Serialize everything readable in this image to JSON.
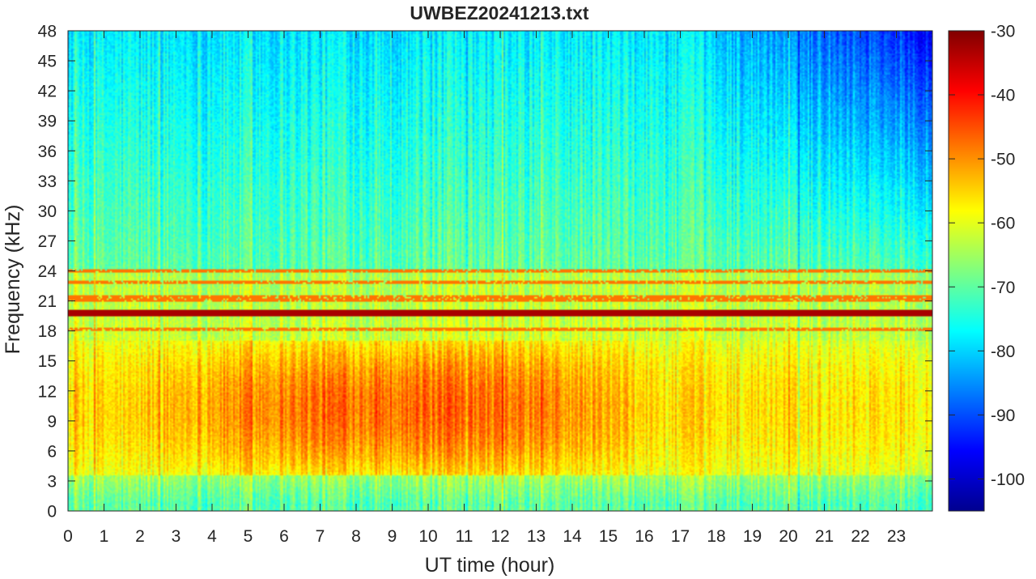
{
  "chart_data": {
    "type": "heatmap",
    "title": "UWBEZ20241213.txt",
    "xlabel": "UT time (hour)",
    "ylabel": "Frequency (kHz)",
    "xlim": [
      0,
      24
    ],
    "ylim": [
      0,
      48
    ],
    "x_ticks": [
      "0",
      "1",
      "2",
      "3",
      "4",
      "5",
      "6",
      "7",
      "8",
      "9",
      "10",
      "11",
      "12",
      "13",
      "14",
      "15",
      "16",
      "17",
      "18",
      "19",
      "20",
      "21",
      "22",
      "23"
    ],
    "y_ticks": [
      "0",
      "3",
      "6",
      "9",
      "12",
      "15",
      "18",
      "21",
      "24",
      "27",
      "30",
      "33",
      "36",
      "39",
      "42",
      "45",
      "48"
    ],
    "colorbar": {
      "colormap": "jet",
      "clim": [
        -105,
        -30
      ],
      "ticks": [
        "-100",
        "-90",
        "-80",
        "-70",
        "-60",
        "-50",
        "-40",
        "-30"
      ]
    },
    "features": {
      "strong_line_khz": 19.8,
      "secondary_lines_khz": [
        18.2,
        21.1,
        21.4,
        22.9,
        24.0
      ],
      "broadband_band_khz": [
        3.5,
        17
      ],
      "broadband_peak_hours": [
        3,
        15
      ]
    }
  }
}
